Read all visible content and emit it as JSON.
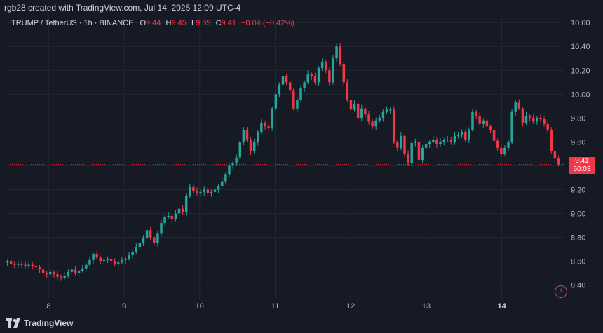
{
  "header": {
    "attribution": "rgb28 created with TradingView.com, Jul 14, 2025 12:09 UTC-4"
  },
  "legend": {
    "symbol": "TRUMP / TetherUS · 1h · BINANCE",
    "o_label": "O",
    "o_value": "9.44",
    "h_label": "H",
    "h_value": "9.45",
    "l_label": "L",
    "l_value": "9.39",
    "c_label": "C",
    "c_value": "9.41",
    "change": "−0.04 (−0.42%)"
  },
  "price_tag": {
    "price": "9.41",
    "countdown": "50:03"
  },
  "footer": {
    "brand": "TradingView"
  },
  "colors": {
    "up": "#26a69a",
    "down": "#f23645",
    "background": "#161a25",
    "grid": "#232734",
    "text": "#b2b5be"
  },
  "icons": {
    "lightning": "lightning-icon",
    "logo": "tradingview-logo-icon"
  },
  "chart_data": {
    "type": "candlestick",
    "title": "TRUMP / TetherUS · 1h · BINANCE",
    "ylim": [
      8.28,
      10.66
    ],
    "y_ticks": [
      "8.40",
      "8.60",
      "8.80",
      "9.00",
      "9.20",
      "9.40",
      "9.60",
      "9.80",
      "10.00",
      "10.20",
      "10.40",
      "10.60"
    ],
    "x_ticks": [
      {
        "label": "8",
        "day": 8,
        "bold": false
      },
      {
        "label": "9",
        "day": 9,
        "bold": false
      },
      {
        "label": "10",
        "day": 10,
        "bold": false
      },
      {
        "label": "11",
        "day": 11,
        "bold": false
      },
      {
        "label": "12",
        "day": 12,
        "bold": false
      },
      {
        "label": "13",
        "day": 13,
        "bold": false
      },
      {
        "label": "14",
        "day": 14,
        "bold": true
      }
    ],
    "x_range_days": [
      7.43,
      14.83
    ],
    "current_price": 9.41,
    "closes": [
      8.6,
      8.58,
      8.57,
      8.58,
      8.57,
      8.56,
      8.57,
      8.56,
      8.55,
      8.53,
      8.5,
      8.49,
      8.51,
      8.49,
      8.47,
      8.46,
      8.48,
      8.51,
      8.53,
      8.5,
      8.52,
      8.54,
      8.57,
      8.61,
      8.66,
      8.63,
      8.6,
      8.61,
      8.62,
      8.6,
      8.58,
      8.59,
      8.61,
      8.62,
      8.65,
      8.68,
      8.72,
      8.75,
      8.79,
      8.86,
      8.8,
      8.75,
      8.83,
      8.92,
      8.97,
      8.98,
      8.95,
      9.0,
      9.04,
      9.01,
      9.15,
      9.22,
      9.19,
      9.17,
      9.18,
      9.2,
      9.17,
      9.18,
      9.2,
      9.23,
      9.27,
      9.33,
      9.4,
      9.42,
      9.47,
      9.6,
      9.7,
      9.62,
      9.52,
      9.6,
      9.68,
      9.76,
      9.73,
      9.72,
      9.88,
      10.0,
      10.08,
      10.15,
      10.1,
      10.03,
      9.88,
      9.95,
      10.05,
      10.1,
      10.17,
      10.15,
      10.1,
      10.22,
      10.27,
      10.2,
      10.1,
      10.3,
      10.4,
      10.25,
      10.1,
      9.95,
      9.87,
      9.92,
      9.8,
      9.88,
      9.83,
      9.77,
      9.73,
      9.78,
      9.8,
      9.85,
      9.87,
      9.87,
      9.6,
      9.55,
      9.65,
      9.5,
      9.42,
      9.59,
      9.6,
      9.45,
      9.55,
      9.58,
      9.6,
      9.62,
      9.58,
      9.6,
      9.62,
      9.62,
      9.6,
      9.65,
      9.66,
      9.68,
      9.62,
      9.7,
      9.85,
      9.82,
      9.75,
      9.78,
      9.73,
      9.7,
      9.61,
      9.55,
      9.5,
      9.55,
      9.6,
      9.85,
      9.93,
      9.88,
      9.76,
      9.82,
      9.8,
      9.77,
      9.8,
      9.79,
      9.75,
      9.7,
      9.52,
      9.46,
      9.41
    ]
  }
}
